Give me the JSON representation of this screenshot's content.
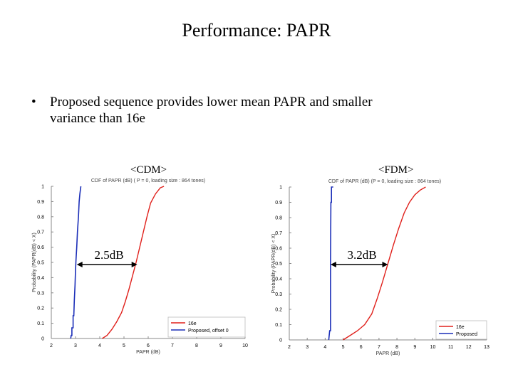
{
  "slide": {
    "title": "Performance: PAPR",
    "bullet_symbol": "•",
    "bullet_line1": "Proposed sequence provides lower mean PAPR and smaller",
    "bullet_line2": "variance than 16e"
  },
  "colors": {
    "series_16e": "#e0201b",
    "series_proposed": "#1c2fb8",
    "axis": "#000000"
  },
  "chart_data": [
    {
      "type": "line",
      "panel_label": "<CDM>",
      "title": "CDF of PAPR (dB) ( P = 0, loading size : 864 tones)",
      "xlabel": "PAPR (dB)",
      "ylabel": "Probability (PAPR(dB) < X)",
      "xlim": [
        2,
        10
      ],
      "ylim": [
        0,
        1
      ],
      "xticks": [
        "2",
        "3",
        "4",
        "5",
        "6",
        "7",
        "8",
        "9",
        "10"
      ],
      "yticks": [
        "0",
        "0.1",
        "0.2",
        "0.3",
        "0.4",
        "0.5",
        "0.6",
        "0.7",
        "0.8",
        "0.9",
        "1"
      ],
      "legend": [
        "16e",
        "Proposed, offset 0"
      ],
      "annotation": {
        "text": "2.5dB",
        "x_from": 3.05,
        "x_to": 5.55,
        "y": 0.5
      },
      "series": [
        {
          "name": "16e",
          "color": "#e0201b",
          "points": [
            [
              4.1,
              0
            ],
            [
              4.3,
              0.02
            ],
            [
              4.5,
              0.06
            ],
            [
              4.7,
              0.11
            ],
            [
              4.9,
              0.17
            ],
            [
              5.05,
              0.24
            ],
            [
              5.2,
              0.32
            ],
            [
              5.35,
              0.41
            ],
            [
              5.5,
              0.5
            ],
            [
              5.65,
              0.6
            ],
            [
              5.8,
              0.7
            ],
            [
              5.95,
              0.8
            ],
            [
              6.1,
              0.89
            ],
            [
              6.3,
              0.95
            ],
            [
              6.5,
              0.99
            ],
            [
              6.65,
              1
            ]
          ]
        },
        {
          "name": "Proposed, offset 0",
          "color": "#1c2fb8",
          "points": [
            [
              2.8,
              0
            ],
            [
              2.82,
              0.02
            ],
            [
              2.85,
              0.02
            ],
            [
              2.85,
              0.07
            ],
            [
              2.9,
              0.07
            ],
            [
              2.9,
              0.15
            ],
            [
              2.93,
              0.15
            ],
            [
              2.95,
              0.25
            ],
            [
              2.98,
              0.35
            ],
            [
              3.0,
              0.45
            ],
            [
              3.02,
              0.52
            ],
            [
              3.05,
              0.6
            ],
            [
              3.08,
              0.7
            ],
            [
              3.12,
              0.8
            ],
            [
              3.15,
              0.9
            ],
            [
              3.18,
              0.95
            ],
            [
              3.22,
              1
            ]
          ]
        }
      ]
    },
    {
      "type": "line",
      "panel_label": "<FDM>",
      "title": "CDF of PAPR (dB) (P = 0, loading size : 864 tones)",
      "xlabel": "PAPR (dB)",
      "ylabel": "Probability (PAPR(dB) < X)",
      "xlim": [
        2,
        13
      ],
      "ylim": [
        0,
        1
      ],
      "xticks": [
        "2",
        "3",
        "4",
        "5",
        "6",
        "7",
        "8",
        "9",
        "10",
        "11",
        "12",
        "13"
      ],
      "yticks": [
        "0",
        "0.1",
        "0.2",
        "0.3",
        "0.4",
        "0.5",
        "0.6",
        "0.7",
        "0.8",
        "0.9",
        "1"
      ],
      "legend": [
        "16e",
        "Proposed"
      ],
      "annotation": {
        "text": "3.2dB",
        "x_from": 4.3,
        "x_to": 7.5,
        "y": 0.5
      },
      "series": [
        {
          "name": "16e",
          "color": "#e0201b",
          "points": [
            [
              5.0,
              0
            ],
            [
              5.4,
              0.03
            ],
            [
              5.8,
              0.06
            ],
            [
              6.2,
              0.1
            ],
            [
              6.6,
              0.17
            ],
            [
              6.9,
              0.27
            ],
            [
              7.2,
              0.38
            ],
            [
              7.5,
              0.5
            ],
            [
              7.8,
              0.62
            ],
            [
              8.1,
              0.73
            ],
            [
              8.4,
              0.83
            ],
            [
              8.7,
              0.9
            ],
            [
              9.0,
              0.95
            ],
            [
              9.3,
              0.98
            ],
            [
              9.6,
              1
            ]
          ]
        },
        {
          "name": "Proposed",
          "color": "#1c2fb8",
          "points": [
            [
              4.2,
              0
            ],
            [
              4.25,
              0.06
            ],
            [
              4.3,
              0.06
            ],
            [
              4.3,
              0.5
            ],
            [
              4.32,
              0.9
            ],
            [
              4.35,
              0.9
            ],
            [
              4.35,
              1
            ],
            [
              4.45,
              1
            ]
          ]
        }
      ]
    }
  ]
}
